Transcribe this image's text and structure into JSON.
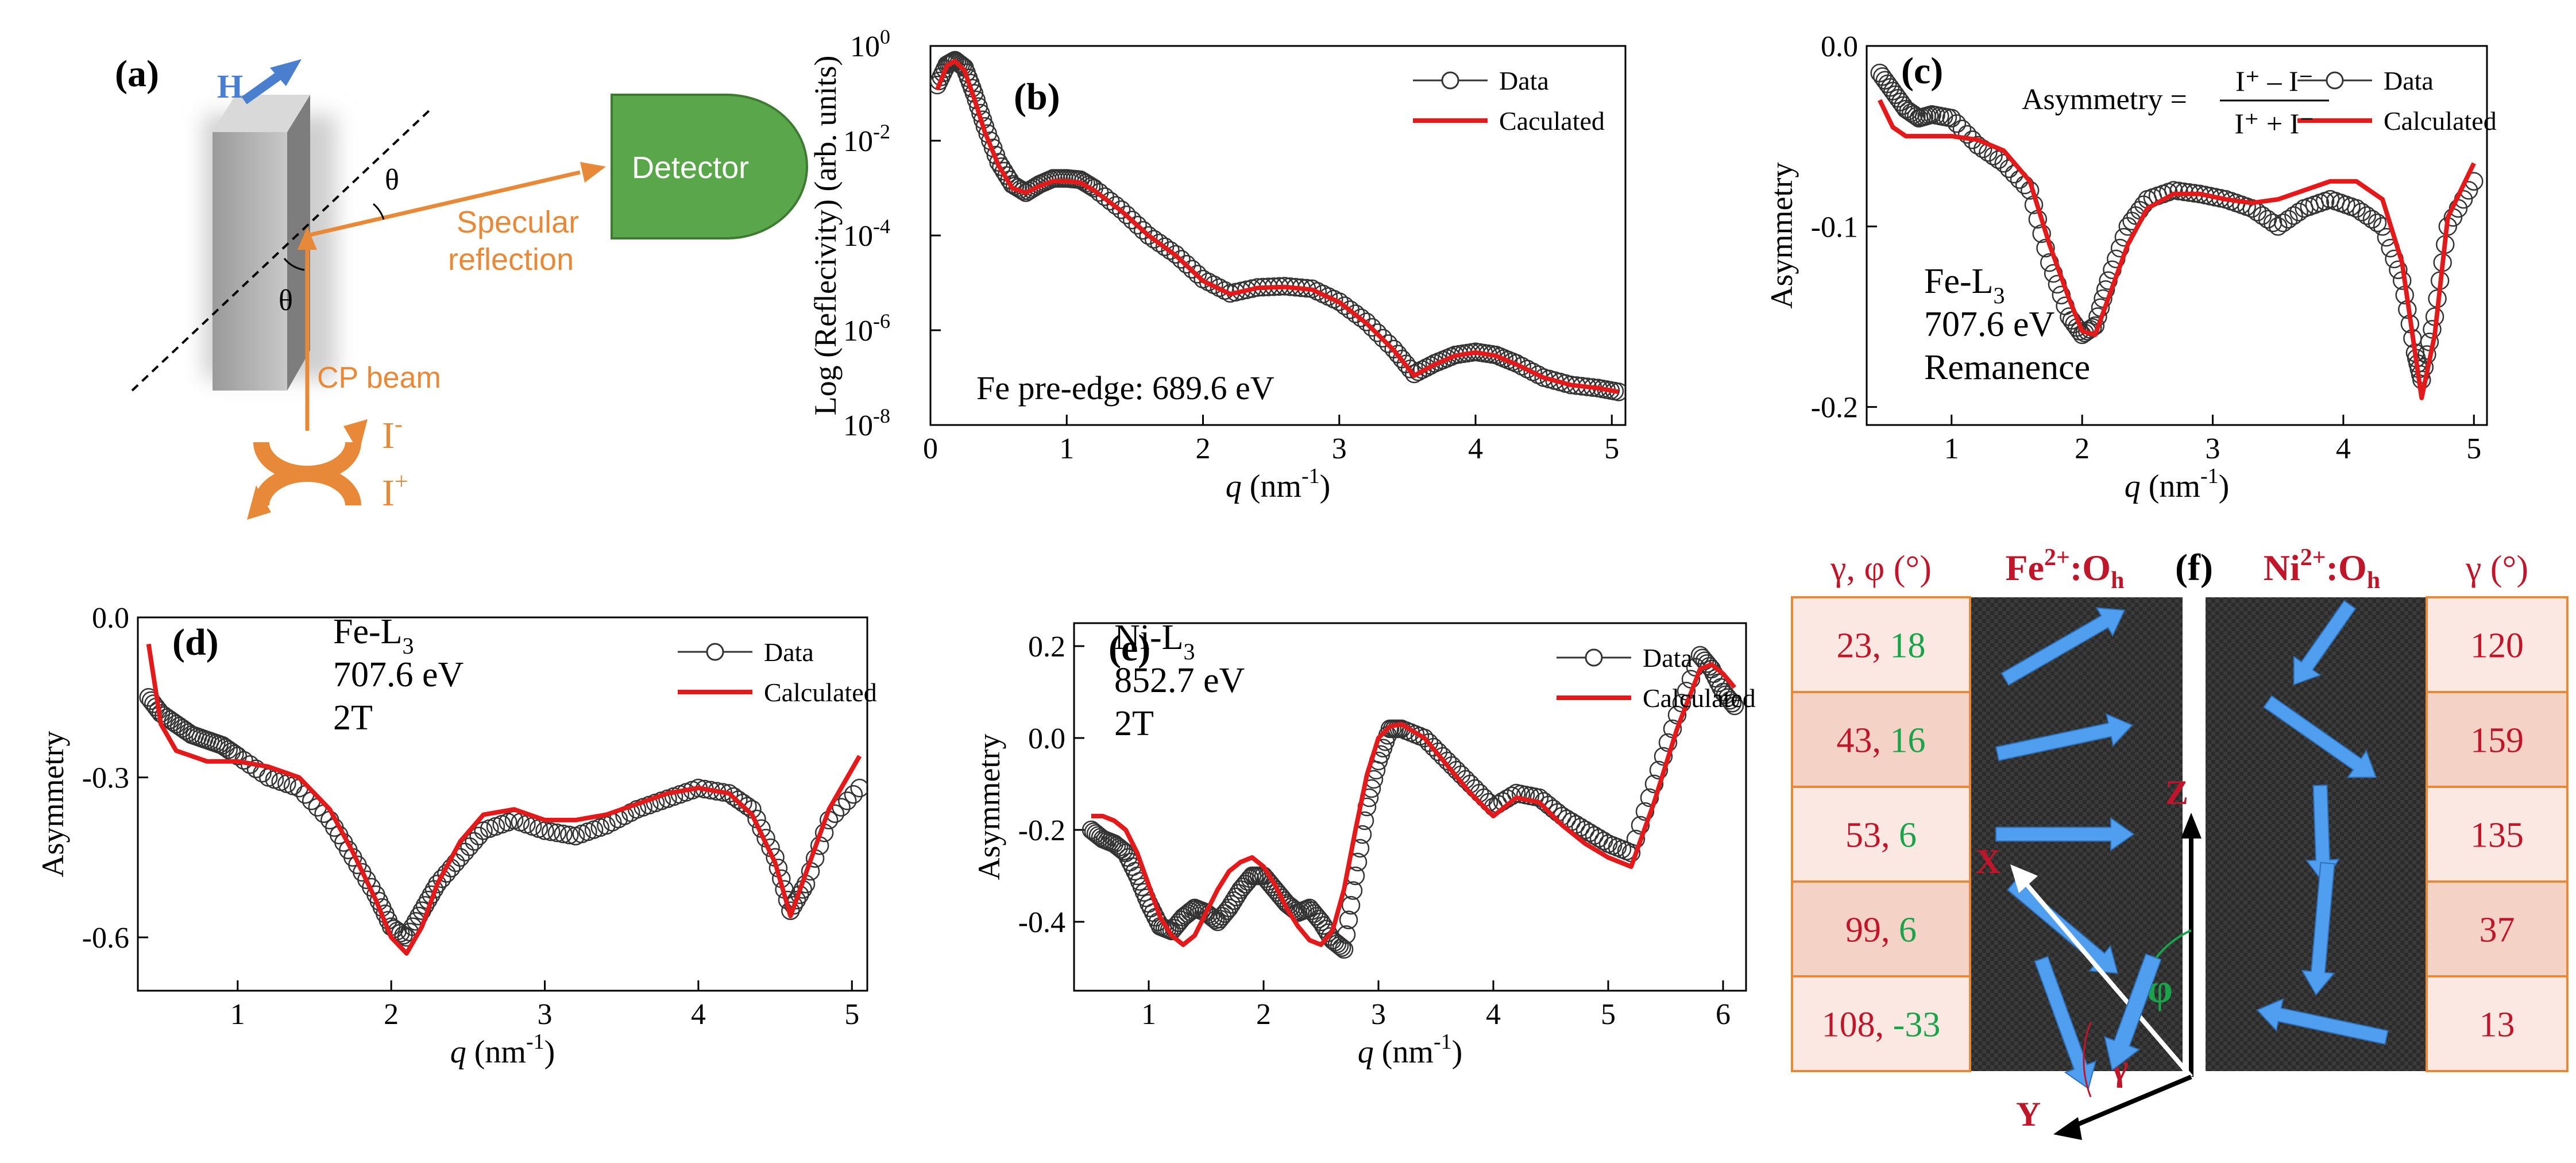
{
  "panel_a": {
    "label": "(a)",
    "field_label": "H",
    "theta": "θ",
    "detector_label": "Detector",
    "reflection_label_1": "Specular",
    "reflection_label_2": "reflection",
    "beam_label": "CP beam",
    "i_minus_base": "I",
    "i_minus_sup": "-",
    "i_plus_base": "I",
    "i_plus_sup": "+",
    "colors": {
      "sample": "#a9a9a9",
      "detector": "#5aa64a",
      "beam": "#e8893a",
      "field": "#4a7fd0"
    }
  },
  "chart_data": [
    {
      "panel": "(b)",
      "type": "line",
      "ylog": true,
      "xlabel_var": "q",
      "xlabel_unit": " (nm",
      "xlabel_exp": "-1",
      "xlabel_close": ")",
      "ylabel": "Log (Reflecivity) (arb. units)",
      "xlim": [
        0,
        5.1
      ],
      "ylim_exp": [
        -8,
        0
      ],
      "xticks": [
        0,
        1,
        2,
        3,
        4,
        5
      ],
      "ytick_exps": [
        -8,
        -6,
        -4,
        -2,
        0
      ],
      "ytick_base": "10",
      "annotation": "Fe pre-edge: 689.6 eV",
      "legend": {
        "data": "Data",
        "calc": "Caculated",
        "position": "top-right"
      },
      "x": [
        0.05,
        0.12,
        0.18,
        0.25,
        0.32,
        0.4,
        0.5,
        0.6,
        0.7,
        0.8,
        0.9,
        1.0,
        1.1,
        1.2,
        1.4,
        1.6,
        1.8,
        2.0,
        2.2,
        2.4,
        2.6,
        2.8,
        3.0,
        3.2,
        3.4,
        3.55,
        3.7,
        3.85,
        4.0,
        4.15,
        4.3,
        4.5,
        4.7,
        4.9,
        5.05
      ],
      "data": [
        0.15,
        0.4,
        0.5,
        0.35,
        0.1,
        0.02,
        0.0035,
        0.0012,
        0.0008,
        0.0012,
        0.0016,
        0.0016,
        0.0015,
        0.001,
        0.00035,
        0.0001,
        4e-05,
        1.2e-05,
        6e-06,
        8e-06,
        8.5e-06,
        7.5e-06,
        4e-06,
        1.5e-06,
        4e-07,
        1.2e-07,
        2e-07,
        3e-07,
        3.5e-07,
        3e-07,
        2e-07,
        1e-07,
        7e-08,
        6e-08,
        5e-08
      ],
      "calc": [
        0.12,
        0.38,
        0.48,
        0.3,
        0.08,
        0.015,
        0.003,
        0.001,
        0.0008,
        0.0011,
        0.0014,
        0.0014,
        0.0013,
        0.0009,
        0.00033,
        0.0001,
        3.8e-05,
        1.1e-05,
        5.8e-06,
        7.8e-06,
        8.2e-06,
        7.2e-06,
        3.9e-06,
        1.4e-06,
        3.8e-07,
        1.1e-07,
        1.9e-07,
        2.9e-07,
        3.4e-07,
        2.9e-07,
        1.9e-07,
        1e-07,
        7e-08,
        6e-08,
        5e-08
      ]
    },
    {
      "panel": "(c)",
      "type": "line",
      "xlabel_var": "q",
      "xlabel_unit": " (nm",
      "xlabel_exp": "-1",
      "xlabel_close": ")",
      "ylabel": "Asymmetry",
      "xlim": [
        0.35,
        5.1
      ],
      "ylim": [
        -0.21,
        0.0
      ],
      "xticks": [
        1,
        2,
        3,
        4,
        5
      ],
      "yticks": [
        -0.2,
        -0.1,
        0.0
      ],
      "ytick_labels": [
        "-0.2",
        "-0.1",
        "0.0"
      ],
      "annotation_lines": [
        "Fe-L",
        "707.6 eV",
        "Remanence"
      ],
      "annotation_sub": "3",
      "formula": {
        "lhs": "Asymmetry =",
        "num": "I⁺ – I⁻",
        "den": "I⁺ + I⁻"
      },
      "legend": {
        "data": "Data",
        "calc": "Calculated",
        "position": "top-right"
      },
      "x": [
        0.45,
        0.55,
        0.65,
        0.75,
        0.85,
        1.0,
        1.2,
        1.4,
        1.6,
        1.75,
        1.9,
        2.0,
        2.1,
        2.2,
        2.35,
        2.5,
        2.7,
        2.9,
        3.1,
        3.3,
        3.5,
        3.7,
        3.9,
        4.1,
        4.3,
        4.45,
        4.55,
        4.6,
        4.7,
        4.8,
        5.0
      ],
      "data": [
        -0.015,
        -0.025,
        -0.035,
        -0.04,
        -0.038,
        -0.04,
        -0.055,
        -0.065,
        -0.08,
        -0.12,
        -0.15,
        -0.16,
        -0.155,
        -0.13,
        -0.1,
        -0.085,
        -0.08,
        -0.082,
        -0.085,
        -0.09,
        -0.1,
        -0.09,
        -0.085,
        -0.09,
        -0.1,
        -0.13,
        -0.17,
        -0.185,
        -0.15,
        -0.1,
        -0.075
      ],
      "calc": [
        -0.03,
        -0.045,
        -0.05,
        -0.05,
        -0.05,
        -0.05,
        -0.052,
        -0.058,
        -0.075,
        -0.11,
        -0.14,
        -0.158,
        -0.16,
        -0.14,
        -0.11,
        -0.09,
        -0.082,
        -0.082,
        -0.085,
        -0.087,
        -0.085,
        -0.08,
        -0.075,
        -0.075,
        -0.085,
        -0.12,
        -0.17,
        -0.195,
        -0.16,
        -0.095,
        -0.065
      ]
    },
    {
      "panel": "(d)",
      "type": "line",
      "xlabel_var": "q",
      "xlabel_unit": " (nm",
      "xlabel_exp": "-1",
      "xlabel_close": ")",
      "ylabel": "Asymmetry",
      "xlim": [
        0.35,
        5.1
      ],
      "ylim": [
        -0.7,
        0.0
      ],
      "xticks": [
        1,
        2,
        3,
        4,
        5
      ],
      "yticks": [
        -0.6,
        -0.3,
        0.0
      ],
      "ytick_labels": [
        "-0.6",
        "-0.3",
        "0.0"
      ],
      "annotation_lines": [
        "Fe-L",
        "707.6 eV",
        "2T"
      ],
      "annotation_sub": "3",
      "legend": {
        "data": "Data",
        "calc": "Calculated",
        "position": "top-right"
      },
      "x": [
        0.42,
        0.5,
        0.6,
        0.7,
        0.8,
        0.9,
        1.0,
        1.2,
        1.4,
        1.6,
        1.75,
        1.9,
        2.0,
        2.1,
        2.2,
        2.3,
        2.45,
        2.6,
        2.8,
        3.0,
        3.2,
        3.4,
        3.6,
        3.8,
        4.0,
        4.2,
        4.35,
        4.5,
        4.6,
        4.7,
        4.85,
        5.05
      ],
      "data": [
        -0.15,
        -0.18,
        -0.2,
        -0.22,
        -0.23,
        -0.24,
        -0.26,
        -0.3,
        -0.32,
        -0.38,
        -0.45,
        -0.52,
        -0.58,
        -0.6,
        -0.55,
        -0.5,
        -0.45,
        -0.4,
        -0.38,
        -0.4,
        -0.41,
        -0.39,
        -0.36,
        -0.34,
        -0.32,
        -0.33,
        -0.36,
        -0.45,
        -0.55,
        -0.5,
        -0.38,
        -0.32
      ],
      "calc": [
        -0.05,
        -0.2,
        -0.25,
        -0.26,
        -0.27,
        -0.27,
        -0.27,
        -0.28,
        -0.3,
        -0.36,
        -0.44,
        -0.53,
        -0.6,
        -0.63,
        -0.58,
        -0.5,
        -0.42,
        -0.37,
        -0.36,
        -0.38,
        -0.38,
        -0.37,
        -0.35,
        -0.33,
        -0.32,
        -0.33,
        -0.37,
        -0.46,
        -0.56,
        -0.48,
        -0.36,
        -0.26
      ]
    },
    {
      "panel": "(e)",
      "type": "line",
      "xlabel_var": "q",
      "xlabel_unit": " (nm",
      "xlabel_exp": "-1",
      "xlabel_close": ")",
      "ylabel": "Asymmetry",
      "xlim": [
        0.35,
        6.2
      ],
      "ylim": [
        -0.55,
        0.25
      ],
      "xticks": [
        1,
        2,
        3,
        4,
        5,
        6
      ],
      "yticks": [
        -0.4,
        -0.2,
        0.0,
        0.2
      ],
      "ytick_labels": [
        "-0.4",
        "-0.2",
        "0.0",
        "0.2"
      ],
      "annotation_lines": [
        "Ni-L",
        "852.7 eV",
        "2T"
      ],
      "annotation_sub": "3",
      "legend": {
        "data": "Data",
        "calc": "Calculated",
        "position": "top-right"
      },
      "x": [
        0.5,
        0.6,
        0.7,
        0.8,
        0.9,
        1.0,
        1.1,
        1.2,
        1.3,
        1.4,
        1.5,
        1.6,
        1.7,
        1.8,
        1.9,
        2.0,
        2.1,
        2.2,
        2.3,
        2.4,
        2.5,
        2.6,
        2.7,
        2.8,
        2.9,
        3.0,
        3.1,
        3.2,
        3.4,
        3.6,
        3.8,
        4.0,
        4.2,
        4.4,
        4.6,
        4.8,
        5.0,
        5.2,
        5.4,
        5.6,
        5.8,
        5.9,
        6.0,
        6.1
      ],
      "data": [
        -0.2,
        -0.22,
        -0.23,
        -0.25,
        -0.3,
        -0.36,
        -0.41,
        -0.42,
        -0.39,
        -0.37,
        -0.38,
        -0.4,
        -0.37,
        -0.33,
        -0.3,
        -0.3,
        -0.33,
        -0.36,
        -0.38,
        -0.37,
        -0.4,
        -0.44,
        -0.46,
        -0.3,
        -0.15,
        -0.05,
        0.02,
        0.02,
        0.0,
        -0.05,
        -0.1,
        -0.15,
        -0.12,
        -0.13,
        -0.17,
        -0.2,
        -0.23,
        -0.25,
        -0.1,
        0.05,
        0.18,
        0.15,
        0.1,
        0.07
      ],
      "calc": [
        -0.17,
        -0.17,
        -0.18,
        -0.2,
        -0.25,
        -0.32,
        -0.39,
        -0.43,
        -0.45,
        -0.43,
        -0.38,
        -0.33,
        -0.29,
        -0.27,
        -0.26,
        -0.28,
        -0.32,
        -0.37,
        -0.41,
        -0.44,
        -0.45,
        -0.42,
        -0.33,
        -0.2,
        -0.08,
        0.0,
        0.025,
        0.03,
        0.0,
        -0.06,
        -0.12,
        -0.17,
        -0.13,
        -0.14,
        -0.19,
        -0.23,
        -0.26,
        -0.28,
        -0.14,
        0.02,
        0.15,
        0.16,
        0.14,
        0.11
      ]
    }
  ],
  "panel_f": {
    "label": "(f)",
    "left_header": {
      "gamma_phi": "γ, φ (°)"
    },
    "fe_header": {
      "base": "Fe",
      "sup": "2+",
      "mid": ":O",
      "sub": "h"
    },
    "ni_header": {
      "base": "Ni",
      "sup": "2+",
      "mid": ":O",
      "sub": "h"
    },
    "right_header": "γ (°)",
    "rows": [
      {
        "gamma": "23",
        "phi": "18",
        "ni_gamma": "120"
      },
      {
        "gamma": "43",
        "phi": "16",
        "ni_gamma": "159"
      },
      {
        "gamma": "53",
        "phi": "6",
        "ni_gamma": "135"
      },
      {
        "gamma": "99",
        "phi": "6",
        "ni_gamma": "37"
      },
      {
        "gamma": "108",
        "phi": "-33",
        "ni_gamma": "13"
      }
    ],
    "sep": ", ",
    "axes": {
      "z": "Z",
      "x": "X",
      "y": "Y",
      "phi": "φ",
      "gamma": "γ"
    },
    "colors": {
      "gamma": "#c0162b",
      "phi": "#1aa34a",
      "arrow": "#4f9ef0",
      "border": "#e8893a",
      "cell_light": "#fbe8e2",
      "cell_dark": "#f5d2c6"
    }
  }
}
